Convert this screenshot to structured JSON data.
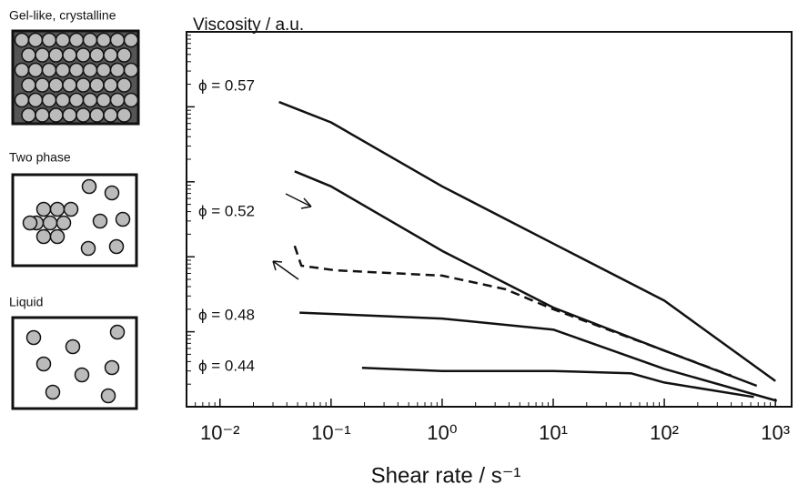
{
  "chart_data": {
    "type": "line",
    "title": "Viscosity / a.u.",
    "xlabel": "Shear rate / s⁻¹",
    "xscale": "log",
    "yscale": "log",
    "xlim": [
      0.005,
      1400
    ],
    "ylim": [
      0.1,
      10000
    ],
    "xticks": [
      {
        "value": 0.01,
        "label": "10⁻²"
      },
      {
        "value": 0.1,
        "label": "10⁻¹"
      },
      {
        "value": 1,
        "label": "10⁰"
      },
      {
        "value": 10,
        "label": "10¹"
      },
      {
        "value": 100,
        "label": "10²"
      },
      {
        "value": 1000,
        "label": "10³"
      }
    ],
    "yticks": [
      1,
      10,
      100,
      1000
    ],
    "series": [
      {
        "name": "ϕ = 0.57",
        "color": "#111111",
        "style": "solid",
        "x": [
          0.034,
          0.1,
          1,
          10,
          100,
          1000
        ],
        "values": [
          1160,
          620,
          87,
          15,
          2.6,
          0.22
        ]
      },
      {
        "name": "ϕ = 0.52",
        "color": "#111111",
        "style": "solid",
        "x": [
          0.047,
          0.1,
          1,
          10,
          100,
          680
        ],
        "values": [
          138,
          87,
          12,
          2.1,
          0.56,
          0.19
        ]
      },
      {
        "color": "#111111",
        "style": "dashed",
        "x": [
          0.047,
          0.054,
          0.11,
          1,
          3.7,
          10,
          100,
          400
        ],
        "values": [
          14,
          7.6,
          6.6,
          5.6,
          3.7,
          2.0,
          0.56,
          0.26
        ]
      },
      {
        "name": "ϕ = 0.48",
        "color": "#111111",
        "style": "solid",
        "x": [
          0.052,
          1,
          10,
          100,
          1030
        ],
        "values": [
          1.8,
          1.5,
          1.07,
          0.32,
          0.12
        ]
      },
      {
        "name": "ϕ = 0.44",
        "color": "#111111",
        "style": "solid",
        "x": [
          0.19,
          1,
          10,
          50,
          100,
          640
        ],
        "values": [
          0.33,
          0.3,
          0.3,
          0.28,
          0.21,
          0.135
        ]
      }
    ],
    "panels": [
      "Gel-like, crystalline",
      "Two phase",
      "Liquid"
    ]
  }
}
